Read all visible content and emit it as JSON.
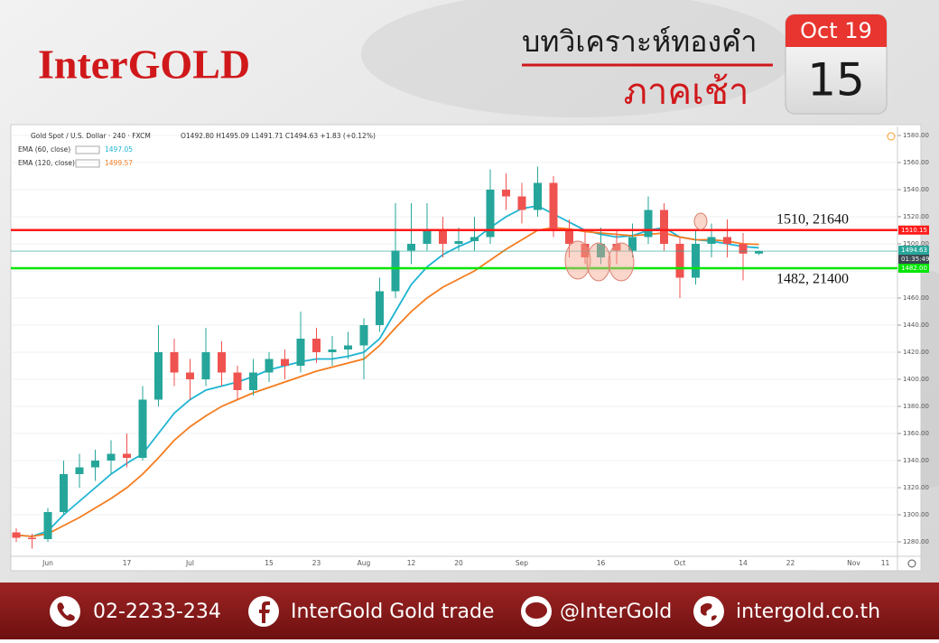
{
  "header": {
    "logo": "InterGOLD",
    "title": "บทวิเคราะห์ทองคำ",
    "subtitle": "ภาคเช้า",
    "calendar": {
      "month": "Oct 19",
      "day": "15"
    }
  },
  "chart_data": {
    "type": "candlestick",
    "symbol": "Gold Spot / U.S. Dollar · 240 · FXCM",
    "ohlc_text": "O1492.80 H1495.09 L1491.71 C1494.63 +1.83 (+0.12%)",
    "categories": [
      null,
      null,
      "Jun",
      null,
      null,
      null,
      null,
      "17",
      null,
      null,
      null,
      "Jul",
      null,
      null,
      null,
      null,
      "15",
      null,
      null,
      "23",
      null,
      null,
      "Aug",
      null,
      null,
      "12",
      null,
      null,
      "20",
      null,
      null,
      null,
      "Sep",
      null,
      null,
      null,
      null,
      "16",
      null,
      null,
      null,
      null,
      "Oct",
      null,
      null,
      null,
      "14",
      null,
      null,
      "22",
      null,
      null,
      null,
      "Nov",
      null,
      "11",
      null
    ],
    "open": [
      1287,
      1283,
      1282,
      1302,
      1330,
      1335,
      1340,
      1345,
      1342,
      1385,
      1420,
      1405,
      1400,
      1420,
      1405,
      1392,
      1405,
      1415,
      1410,
      1430,
      1420,
      1422,
      1425,
      1440,
      1465,
      1495,
      1500,
      1510,
      1500,
      1502,
      1505,
      1540,
      1535,
      1525,
      1545,
      1510,
      1500,
      1490,
      1500,
      1495,
      1505,
      1525,
      1500,
      1475,
      1500,
      1505,
      1500,
      1492.8,
      null,
      null,
      null,
      null,
      null,
      null,
      null,
      null,
      null
    ],
    "high": [
      1290,
      1286,
      1305,
      1340,
      1345,
      1348,
      1355,
      1360,
      1395,
      1440,
      1430,
      1415,
      1438,
      1428,
      1410,
      1415,
      1420,
      1422,
      1450,
      1438,
      1432,
      1435,
      1445,
      1475,
      1530,
      1530,
      1530,
      1520,
      1512,
      1520,
      1555,
      1552,
      1545,
      1557,
      1550,
      1518,
      1510,
      1512,
      1510,
      1515,
      1535,
      1530,
      1505,
      1510,
      1515,
      1518,
      1508,
      1495.09,
      null,
      null,
      null,
      null,
      null,
      null,
      null,
      null,
      null
    ],
    "low": [
      1280,
      1275,
      1280,
      1300,
      1320,
      1325,
      1330,
      1335,
      1340,
      1380,
      1395,
      1385,
      1395,
      1395,
      1385,
      1388,
      1398,
      1400,
      1405,
      1412,
      1410,
      1415,
      1400,
      1435,
      1460,
      1485,
      1495,
      1490,
      1495,
      1495,
      1500,
      1525,
      1515,
      1520,
      1505,
      1490,
      1485,
      1485,
      1485,
      1490,
      1500,
      1495,
      1460,
      1470,
      1490,
      1490,
      1473,
      1491.71,
      null,
      null,
      null,
      null,
      null,
      null,
      null,
      null,
      null
    ],
    "close": [
      1283,
      1282,
      1302,
      1330,
      1335,
      1340,
      1345,
      1342,
      1385,
      1420,
      1405,
      1400,
      1420,
      1405,
      1392,
      1405,
      1415,
      1410,
      1430,
      1420,
      1422,
      1425,
      1440,
      1465,
      1495,
      1500,
      1510,
      1500,
      1502,
      1505,
      1540,
      1535,
      1525,
      1545,
      1510,
      1500,
      1490,
      1500,
      1495,
      1505,
      1525,
      1500,
      1475,
      1500,
      1505,
      1500,
      1492.8,
      1494.63,
      null,
      null,
      null,
      null,
      null,
      null,
      null,
      null,
      null
    ],
    "up_color": "#26a69a",
    "down_color": "#ef5350",
    "ema": [
      {
        "name": "EMA (60, close)",
        "color": "#1eb4d2",
        "values": [
          1285,
          1284,
          1288,
          1300,
          1310,
          1320,
          1330,
          1338,
          1345,
          1360,
          1375,
          1385,
          1392,
          1395,
          1398,
          1402,
          1407,
          1410,
          1413,
          1415,
          1415,
          1417,
          1420,
          1430,
          1450,
          1470,
          1483,
          1492,
          1498,
          1503,
          1512,
          1520,
          1526,
          1528,
          1522,
          1516,
          1510,
          1507,
          1505,
          1506,
          1510,
          1512,
          1505,
          1503,
          1502,
          1500,
          1498,
          1497.05,
          null,
          null,
          null,
          null,
          null,
          null,
          null,
          null,
          null
        ]
      },
      {
        "name": "EMA (120, close)",
        "color": "#f57c1f",
        "values": [
          1285,
          1284,
          1286,
          1292,
          1298,
          1305,
          1312,
          1320,
          1330,
          1342,
          1355,
          1365,
          1373,
          1380,
          1385,
          1390,
          1394,
          1398,
          1402,
          1406,
          1409,
          1412,
          1415,
          1425,
          1438,
          1450,
          1460,
          1468,
          1474,
          1480,
          1488,
          1496,
          1503,
          1510,
          1512,
          1511,
          1509,
          1508,
          1507,
          1506,
          1507,
          1508,
          1505,
          1503,
          1503,
          1502,
          1500,
          1499.57,
          null,
          null,
          null,
          null,
          null,
          null,
          null,
          null,
          null
        ]
      }
    ],
    "levels": [
      {
        "value": 1510.15,
        "label": "1510.15",
        "note": "1510, 21640",
        "color": "#ff1a1a"
      },
      {
        "value": 1482,
        "label": "1482.00",
        "note": "1482, 21400",
        "color": "#00e600"
      }
    ],
    "countdown": "01:35:49",
    "last_color": "#26a69a",
    "ylim": [
      1270,
      1586
    ],
    "yticks": [
      {
        "value": 1280,
        "label": "1280.00"
      },
      {
        "value": 1300,
        "label": "1300.00"
      },
      {
        "value": 1320,
        "label": "1320.00"
      },
      {
        "value": 1340,
        "label": "1340.00"
      },
      {
        "value": 1360,
        "label": "1360.00"
      },
      {
        "value": 1380,
        "label": "1380.00"
      },
      {
        "value": 1400,
        "label": "1400.00"
      },
      {
        "value": 1420,
        "label": "1420.00"
      },
      {
        "value": 1440,
        "label": "1440.00"
      },
      {
        "value": 1460,
        "label": "1460.00"
      },
      {
        "value": 1480,
        "label": "1480.00"
      },
      {
        "value": 1500,
        "label": "1500.00"
      },
      {
        "value": 1520,
        "label": "1520.00"
      },
      {
        "value": 1540,
        "label": "1540.00"
      },
      {
        "value": 1560,
        "label": "1560.00"
      },
      {
        "value": 1580,
        "label": "1580.00"
      }
    ],
    "grid": true
  },
  "footer": {
    "phone": "02-2233-234",
    "facebook": "InterGold Gold trade",
    "line": "@InterGold",
    "web": "intergold.co.th"
  }
}
